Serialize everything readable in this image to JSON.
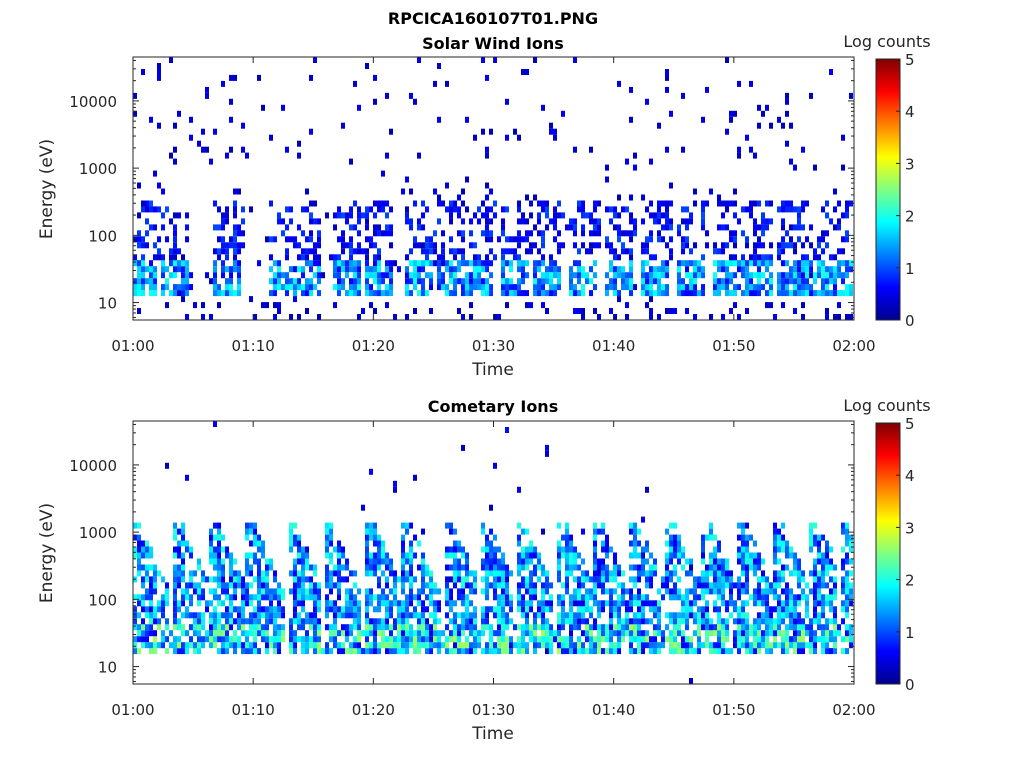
{
  "figure": {
    "title": "RPCICA160107T01.PNG"
  },
  "colormap": [
    "#00008f",
    "#0000ff",
    "#0080ff",
    "#00ffff",
    "#80ff80",
    "#ffff00",
    "#ff8000",
    "#ff0000",
    "#800000"
  ],
  "chart_data": [
    {
      "type": "heatmap",
      "title": "Solar Wind Ions",
      "xlabel": "Time",
      "ylabel": "Energy (eV)",
      "x_ticks": [
        "01:00",
        "01:10",
        "01:20",
        "01:30",
        "01:40",
        "01:50",
        "02:00"
      ],
      "y_scale": "log",
      "y_ticks": [
        "10",
        "100",
        "1000",
        "10000"
      ],
      "xlim": [
        "01:00",
        "02:00"
      ],
      "ylim": [
        5.5,
        45000
      ],
      "colorbar": {
        "label": "Log counts",
        "ticks": [
          "0",
          "1",
          "2",
          "3",
          "4",
          "5"
        ],
        "range": [
          0,
          5
        ]
      },
      "pattern": "solar_wind",
      "burst_times_min": [
        0.5,
        3.0,
        7.5,
        12.0,
        14.0,
        17.5,
        20.0,
        23.5,
        26.0,
        28.5,
        31.5,
        34.0,
        37.0,
        40.0,
        43.0,
        46.0,
        49.0,
        51.5,
        54.5,
        57.0,
        59.5
      ]
    },
    {
      "type": "heatmap",
      "title": "Cometary Ions",
      "xlabel": "Time",
      "ylabel": "Energy (eV)",
      "x_ticks": [
        "01:00",
        "01:10",
        "01:20",
        "01:30",
        "01:40",
        "01:50",
        "02:00"
      ],
      "y_scale": "log",
      "y_ticks": [
        "10",
        "100",
        "1000",
        "10000"
      ],
      "xlim": [
        "01:00",
        "02:00"
      ],
      "ylim": [
        5.5,
        45000
      ],
      "colorbar": {
        "label": "Log counts",
        "ticks": [
          "0",
          "1",
          "2",
          "3",
          "4",
          "5"
        ],
        "range": [
          0,
          5
        ]
      },
      "pattern": "cometary",
      "burst_times_min": [
        0.5,
        4.0,
        7.0,
        10.0,
        13.5,
        16.5,
        20.0,
        23.0,
        26.5,
        29.5,
        32.5,
        36.0,
        39.0,
        42.0,
        45.0,
        48.0,
        51.0,
        54.0,
        57.0,
        59.5
      ]
    }
  ]
}
